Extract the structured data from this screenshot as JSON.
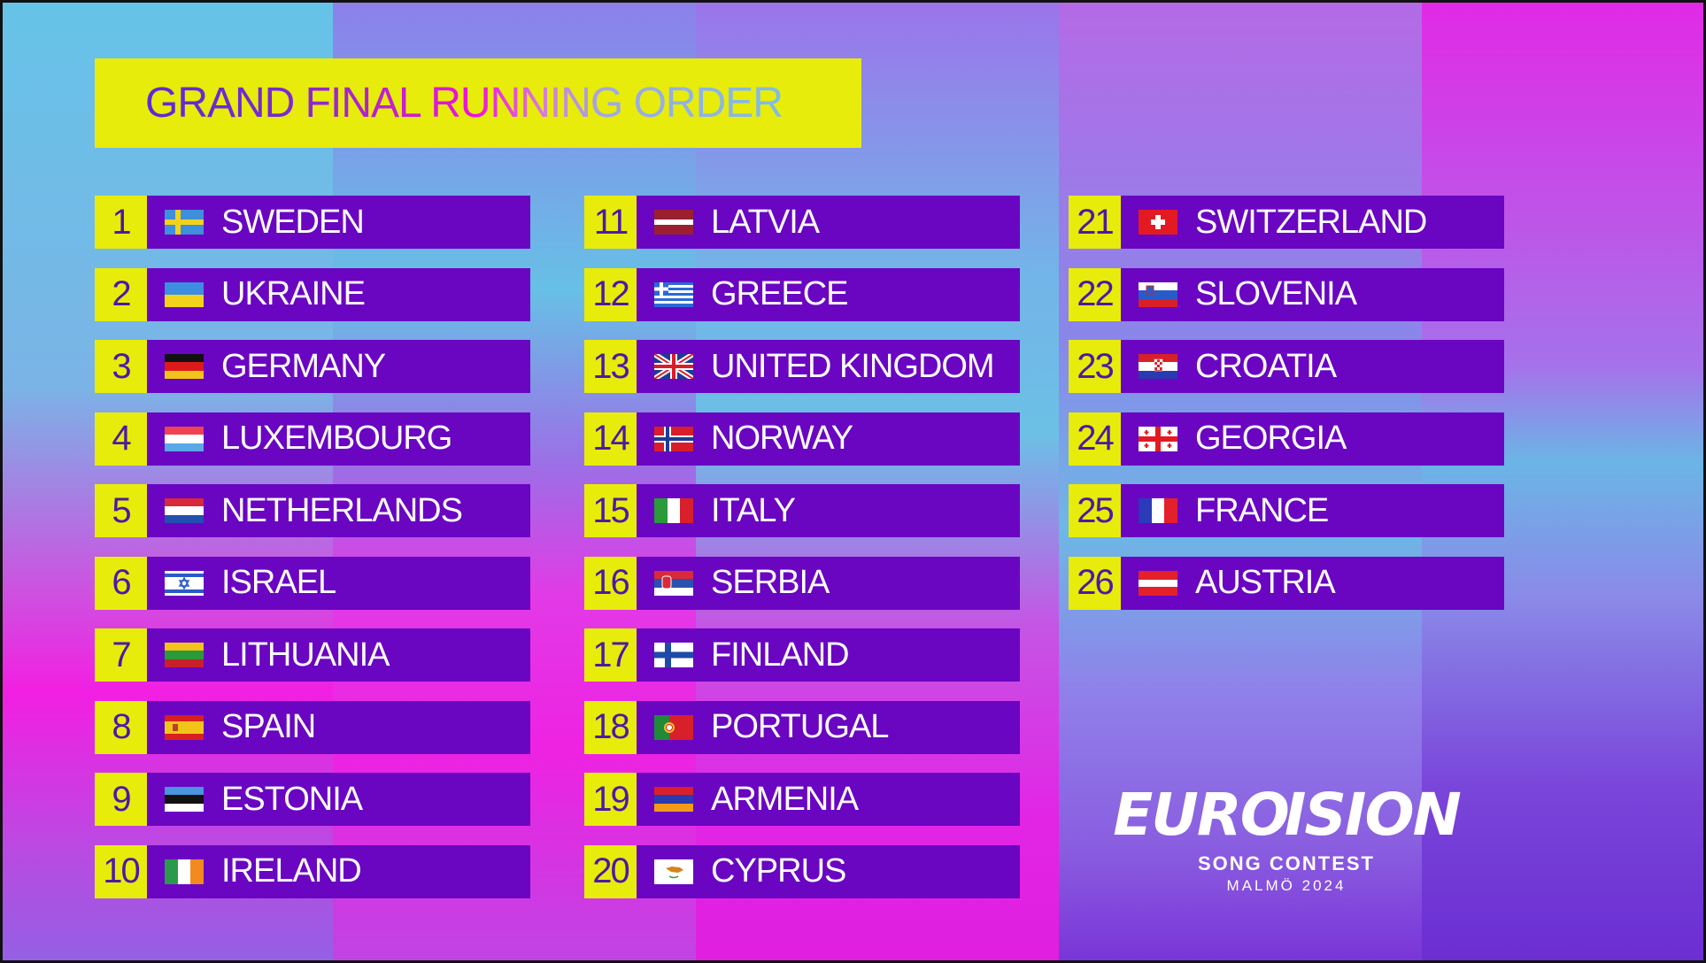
{
  "title": {
    "text": "GRAND FINAL RUNNING ORDER"
  },
  "colors": {
    "yellow": "#e8ec0a",
    "bar": "#6a05c2",
    "number_text": "#4a1aa6"
  },
  "entries": [
    {
      "num": "1",
      "country": "SWEDEN",
      "flag": "sweden-flag-icon"
    },
    {
      "num": "2",
      "country": "UKRAINE",
      "flag": "ukraine-flag-icon"
    },
    {
      "num": "3",
      "country": "GERMANY",
      "flag": "germany-flag-icon"
    },
    {
      "num": "4",
      "country": "LUXEMBOURG",
      "flag": "luxembourg-flag-icon"
    },
    {
      "num": "5",
      "country": "NETHERLANDS",
      "flag": "netherlands-flag-icon"
    },
    {
      "num": "6",
      "country": "ISRAEL",
      "flag": "israel-flag-icon"
    },
    {
      "num": "7",
      "country": "LITHUANIA",
      "flag": "lithuania-flag-icon"
    },
    {
      "num": "8",
      "country": "SPAIN",
      "flag": "spain-flag-icon"
    },
    {
      "num": "9",
      "country": "ESTONIA",
      "flag": "estonia-flag-icon"
    },
    {
      "num": "10",
      "country": "IRELAND",
      "flag": "ireland-flag-icon"
    },
    {
      "num": "11",
      "country": "LATVIA",
      "flag": "latvia-flag-icon"
    },
    {
      "num": "12",
      "country": "GREECE",
      "flag": "greece-flag-icon"
    },
    {
      "num": "13",
      "country": "UNITED KINGDOM",
      "flag": "united-kingdom-flag-icon"
    },
    {
      "num": "14",
      "country": "NORWAY",
      "flag": "norway-flag-icon"
    },
    {
      "num": "15",
      "country": "ITALY",
      "flag": "italy-flag-icon"
    },
    {
      "num": "16",
      "country": "SERBIA",
      "flag": "serbia-flag-icon"
    },
    {
      "num": "17",
      "country": "FINLAND",
      "flag": "finland-flag-icon"
    },
    {
      "num": "18",
      "country": "PORTUGAL",
      "flag": "portugal-flag-icon"
    },
    {
      "num": "19",
      "country": "ARMENIA",
      "flag": "armenia-flag-icon"
    },
    {
      "num": "20",
      "country": "CYPRUS",
      "flag": "cyprus-flag-icon"
    },
    {
      "num": "21",
      "country": "SWITZERLAND",
      "flag": "switzerland-flag-icon"
    },
    {
      "num": "22",
      "country": "SLOVENIA",
      "flag": "slovenia-flag-icon"
    },
    {
      "num": "23",
      "country": "CROATIA",
      "flag": "croatia-flag-icon"
    },
    {
      "num": "24",
      "country": "GEORGIA",
      "flag": "georgia-flag-icon"
    },
    {
      "num": "25",
      "country": "FRANCE",
      "flag": "france-flag-icon"
    },
    {
      "num": "26",
      "country": "AUSTRIA",
      "flag": "austria-flag-icon"
    }
  ],
  "logo": {
    "word": "EUROVISION",
    "word_left": "EURO",
    "word_right": "ISION",
    "heart_icon": "sweden-heart-icon",
    "subtitle": "SONG CONTEST",
    "subtitle2": "MALMÖ 2024"
  }
}
